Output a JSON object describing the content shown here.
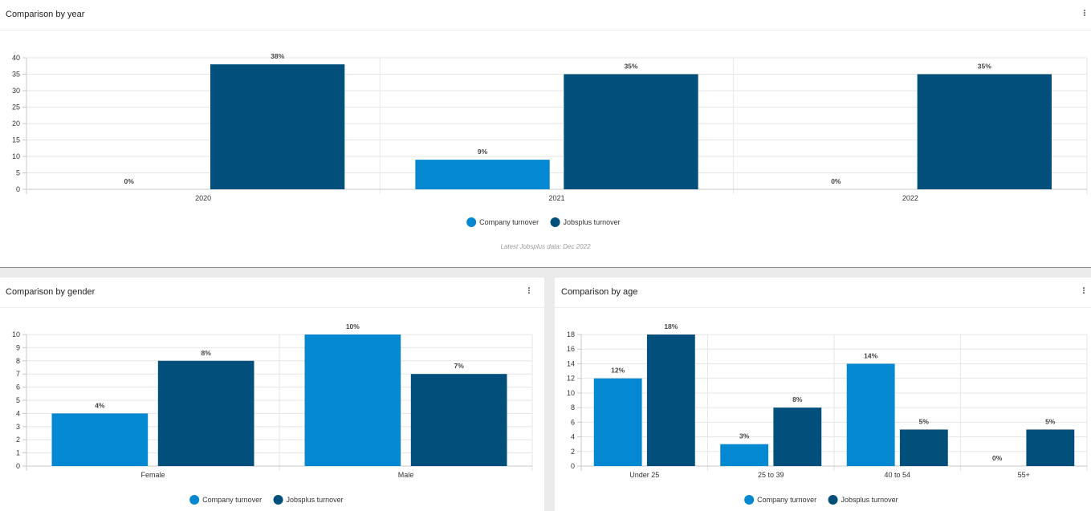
{
  "colors": {
    "company": "#0388d1",
    "jobsplus": "#014f7a",
    "grid": "#e6e6e6",
    "axis": "#c8c8c8",
    "text": "#333333"
  },
  "legend": {
    "company": "Company turnover",
    "jobsplus": "Jobsplus turnover"
  },
  "menu_icon": "kebab-menu-icon",
  "year_panel": {
    "title": "Comparison by year",
    "footnote": "Latest Jobsplus data: Dec 2022"
  },
  "gender_panel": {
    "title": "Comparison by gender"
  },
  "age_panel": {
    "title": "Comparison by age"
  },
  "chart_data": [
    {
      "type": "bar",
      "title": "Comparison by year",
      "categories": [
        "2020",
        "2021",
        "2022"
      ],
      "series": [
        {
          "name": "Company turnover",
          "values": [
            0,
            9,
            0
          ],
          "labels": [
            "0%",
            "9%",
            "0%"
          ]
        },
        {
          "name": "Jobsplus turnover",
          "values": [
            38,
            35,
            35
          ],
          "labels": [
            "38%",
            "35%",
            "35%"
          ]
        }
      ],
      "ylim": [
        0,
        40
      ],
      "yticks": [
        0,
        5,
        10,
        15,
        20,
        25,
        30,
        35,
        40
      ],
      "grid": true,
      "legend_position": "bottom"
    },
    {
      "type": "bar",
      "title": "Comparison by gender",
      "categories": [
        "Female",
        "Male"
      ],
      "series": [
        {
          "name": "Company turnover",
          "values": [
            4,
            10
          ],
          "labels": [
            "4%",
            "10%"
          ]
        },
        {
          "name": "Jobsplus turnover",
          "values": [
            8,
            7
          ],
          "labels": [
            "8%",
            "7%"
          ]
        }
      ],
      "ylim": [
        0,
        10
      ],
      "yticks": [
        0,
        1,
        2,
        3,
        4,
        5,
        6,
        7,
        8,
        9,
        10
      ],
      "grid": true,
      "legend_position": "bottom"
    },
    {
      "type": "bar",
      "title": "Comparison by age",
      "categories": [
        "Under 25",
        "25 to 39",
        "40 to 54",
        "55+"
      ],
      "series": [
        {
          "name": "Company turnover",
          "values": [
            12,
            3,
            14,
            0
          ],
          "labels": [
            "12%",
            "3%",
            "14%",
            "0%"
          ]
        },
        {
          "name": "Jobsplus turnover",
          "values": [
            18,
            8,
            5,
            5
          ],
          "labels": [
            "18%",
            "8%",
            "5%",
            "5%"
          ]
        }
      ],
      "ylim": [
        0,
        18
      ],
      "yticks": [
        0,
        2,
        4,
        6,
        8,
        10,
        12,
        14,
        16,
        18
      ],
      "grid": true,
      "legend_position": "bottom"
    }
  ]
}
